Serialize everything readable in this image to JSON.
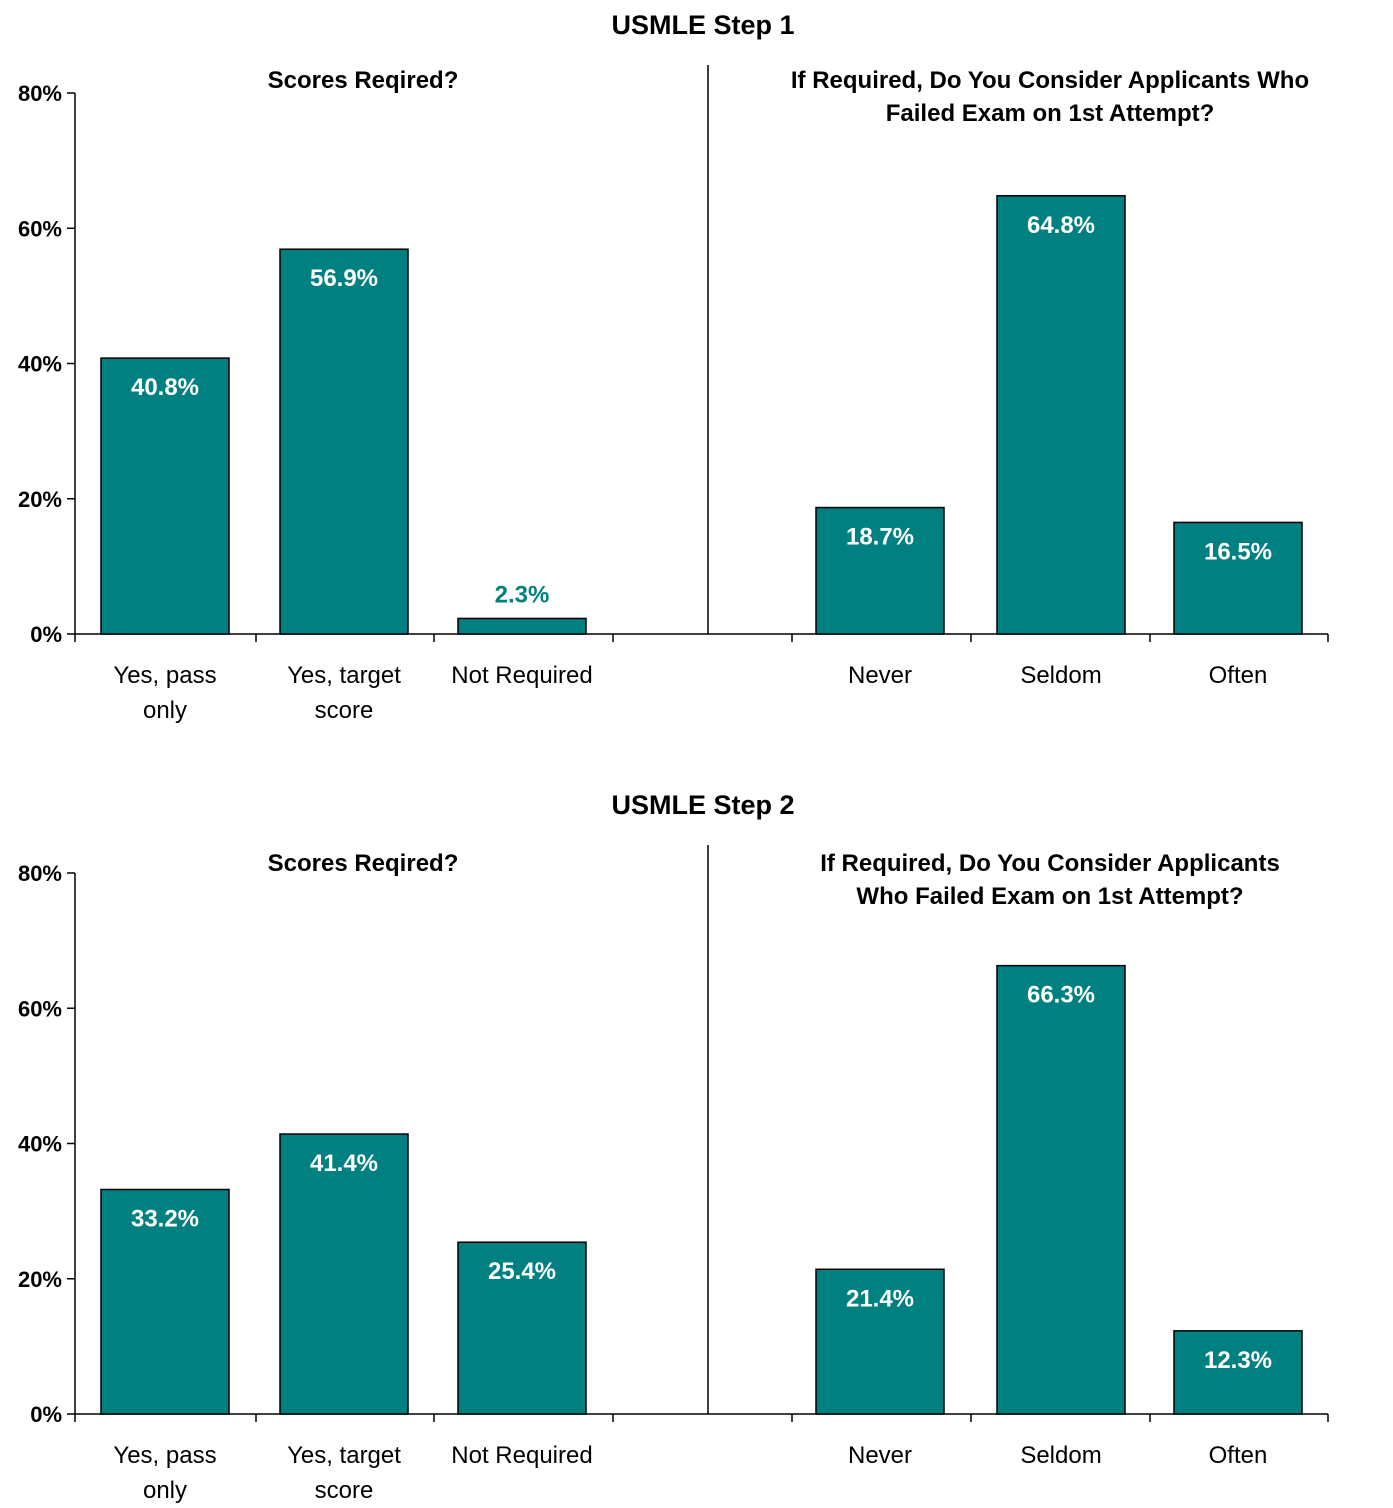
{
  "colors": {
    "bar": "#008080",
    "bar_stroke": "#000000",
    "label_inside": "#ffffff",
    "label_outside": "#008080"
  },
  "chart_data": [
    {
      "type": "bar",
      "title": "USMLE Step 1",
      "ylim": [
        0,
        80
      ],
      "yticks": [
        "0%",
        "20%",
        "40%",
        "60%",
        "80%"
      ],
      "grid": false,
      "panels": [
        {
          "subtitle": "Scores Reqired?",
          "categories": [
            [
              "Yes, pass",
              "only"
            ],
            [
              "Yes, target",
              "score"
            ],
            [
              "Not Required"
            ]
          ],
          "values": [
            40.8,
            56.9,
            2.3
          ],
          "labels": [
            "40.8%",
            "56.9%",
            "2.3%"
          ]
        },
        {
          "subtitle": "If Required, Do You Consider Applicants Who Failed Exam on 1st Attempt?",
          "subtitle_lines": [
            "If Required, Do You Consider Applicants Who",
            "Failed Exam on 1st Attempt?"
          ],
          "categories": [
            [
              "Never"
            ],
            [
              "Seldom"
            ],
            [
              "Often"
            ]
          ],
          "values": [
            18.7,
            64.8,
            16.5
          ],
          "labels": [
            "18.7%",
            "64.8%",
            "16.5%"
          ]
        }
      ]
    },
    {
      "type": "bar",
      "title": "USMLE Step 2",
      "ylim": [
        0,
        80
      ],
      "yticks": [
        "0%",
        "20%",
        "40%",
        "60%",
        "80%"
      ],
      "grid": false,
      "panels": [
        {
          "subtitle": "Scores Reqired?",
          "categories": [
            [
              "Yes, pass",
              "only"
            ],
            [
              "Yes, target",
              "score"
            ],
            [
              "Not Required"
            ]
          ],
          "values": [
            33.2,
            41.4,
            25.4
          ],
          "labels": [
            "33.2%",
            "41.4%",
            "25.4%"
          ]
        },
        {
          "subtitle": "If Required, Do You Consider Applicants Who Failed Exam on 1st Attempt?",
          "subtitle_lines": [
            "If Required, Do You Consider Applicants",
            "Who Failed Exam on 1st Attempt?"
          ],
          "categories": [
            [
              "Never"
            ],
            [
              "Seldom"
            ],
            [
              "Often"
            ]
          ],
          "values": [
            21.4,
            66.3,
            12.3
          ],
          "labels": [
            "21.4%",
            "66.3%",
            "12.3%"
          ]
        }
      ]
    }
  ]
}
